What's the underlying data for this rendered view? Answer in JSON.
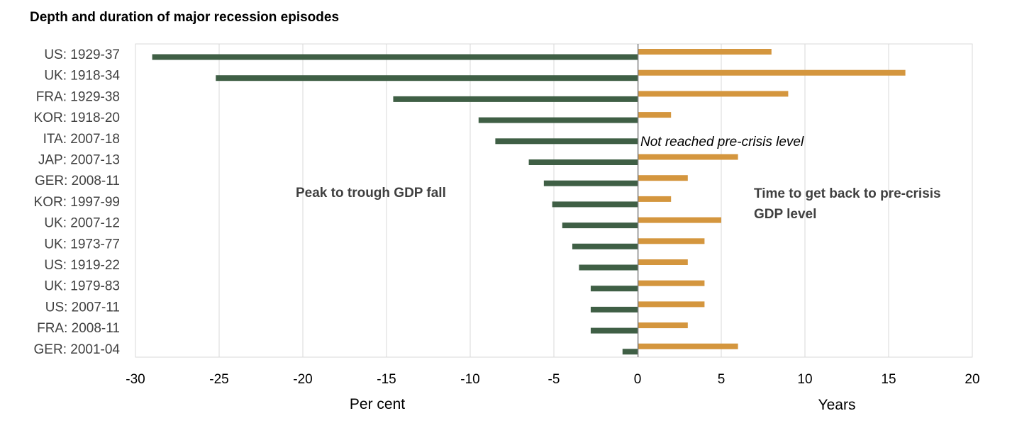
{
  "chart_data": {
    "type": "bar",
    "orientation": "horizontal",
    "title": "Depth and duration of major recession episodes",
    "categories": [
      "US: 1929-37",
      "UK: 1918-34",
      "FRA: 1929-38",
      "KOR: 1918-20",
      "ITA: 2007-18",
      "JAP: 2007-13",
      "GER: 2008-11",
      "KOR: 1997-99",
      "UK: 2007-12",
      "UK: 1973-77",
      "US: 1919-22",
      "UK: 1979-83",
      "US: 2007-11",
      "FRA: 2008-11",
      "GER: 2001-04"
    ],
    "series": [
      {
        "name": "Peak to trough GDP fall",
        "color": "#3f5f45",
        "values": [
          -29.0,
          -25.2,
          -14.6,
          -9.5,
          -8.5,
          -6.5,
          -5.6,
          -5.1,
          -4.5,
          -3.9,
          -3.5,
          -2.8,
          -2.8,
          -2.8,
          -0.9
        ]
      },
      {
        "name": "Time to get back to pre-crisis GDP level",
        "color": "#d4963e",
        "values": [
          8,
          16,
          9,
          2,
          null,
          6,
          3,
          2,
          5,
          4,
          3,
          4,
          4,
          3,
          6
        ]
      }
    ],
    "xlim": [
      -30,
      20
    ],
    "x_ticks": [
      "-30",
      "-25",
      "-20",
      "-15",
      "-10",
      "-5",
      "0",
      "5",
      "10",
      "15",
      "20"
    ],
    "xlabel_left": "Per cent",
    "xlabel_right": "Years",
    "grid": "vertical",
    "annotations": {
      "left": "Peak to trough GDP fall",
      "right_line1": "Time to get back to pre-crisis",
      "right_line2": "GDP level",
      "not_reached": "Not reached pre-crisis level"
    }
  }
}
